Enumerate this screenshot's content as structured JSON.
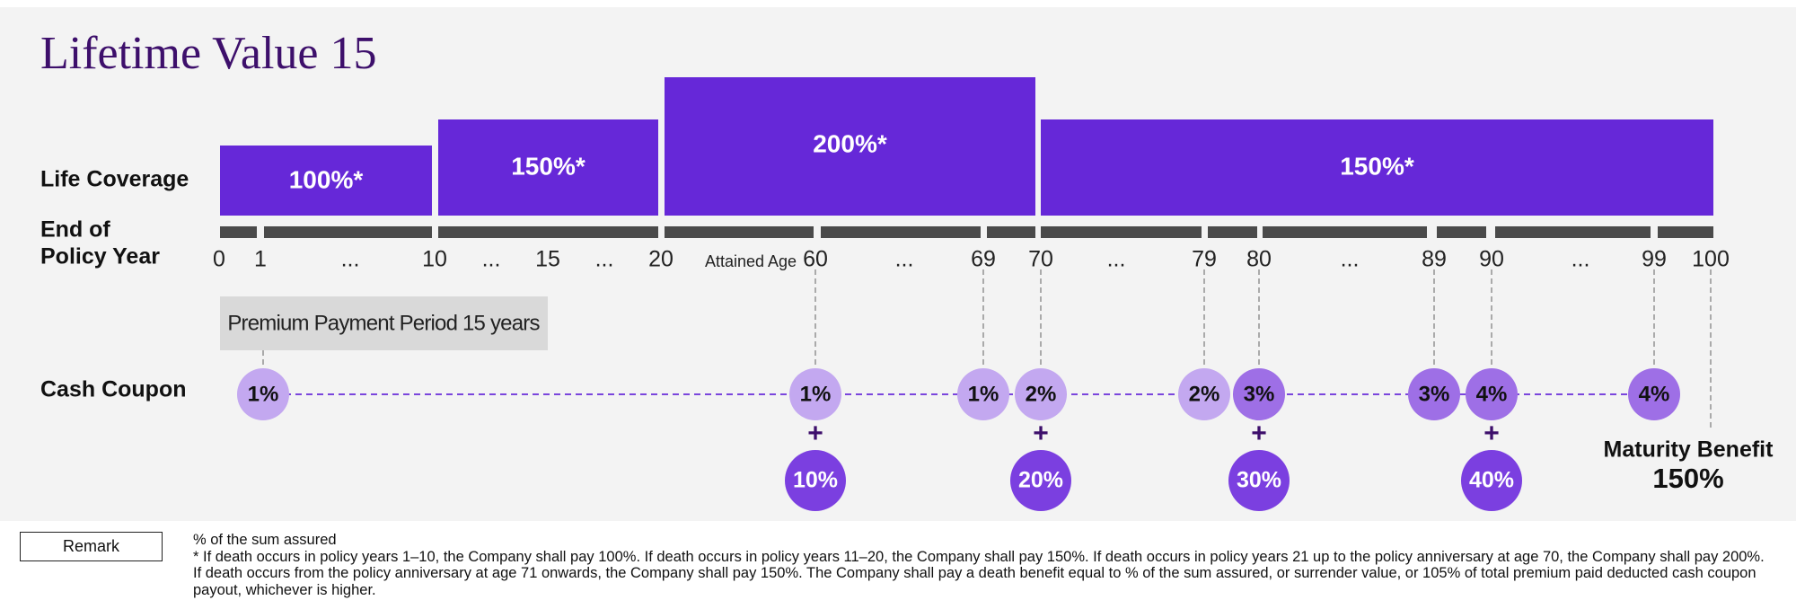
{
  "title": "Lifetime Value 15",
  "row_labels": {
    "coverage": "Life Coverage",
    "policy_year": [
      "End of",
      "Policy Year"
    ],
    "cash_coupon": "Cash Coupon"
  },
  "coverage": [
    "100%*",
    "150%*",
    "200%*",
    "150%*"
  ],
  "timeline": [
    "0",
    "1",
    "...",
    "10",
    "...",
    "15",
    "...",
    "20",
    "60",
    "...",
    "69",
    "70",
    "...",
    "79",
    "80",
    "...",
    "89",
    "90",
    "...",
    "99",
    "100"
  ],
  "attained_age": "Attained Age",
  "premium_period": "Premium Payment Period 15 years",
  "coupons": [
    "1%",
    "1%",
    "1%",
    "2%",
    "2%",
    "3%",
    "3%",
    "4%",
    "4%"
  ],
  "plus": "+",
  "bonuses": [
    "10%",
    "20%",
    "30%",
    "40%"
  ],
  "maturity": {
    "label": "Maturity Benefit",
    "value": "150%"
  },
  "remark": {
    "button": "Remark",
    "unit_note": "% of the sum assured",
    "footnote": "* If death occurs in policy years 1–10, the Company shall pay 100%. If death occurs in policy years 11–20, the Company shall pay 150%. If death occurs in policy years 21 up to the policy anniversary at age 70, the Company shall pay 200%. If death occurs from the policy anniversary at age 71 onwards, the Company shall pay 150%. The Company shall pay a death benefit equal to % of the sum assured, or surrender value, or 105% of total premium paid deducted cash coupon payout, whichever is higher."
  }
}
